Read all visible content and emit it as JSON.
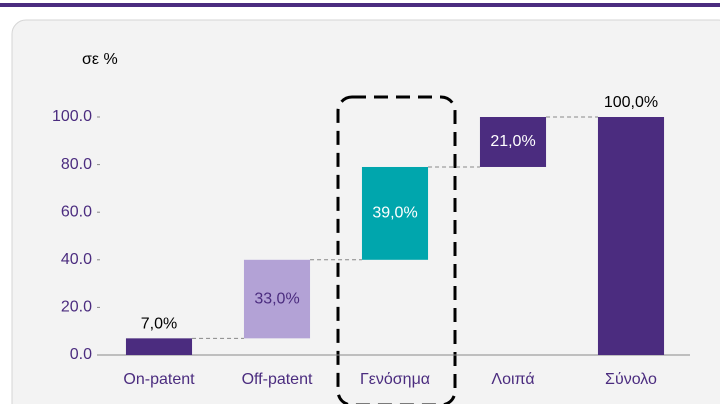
{
  "chart_data": {
    "type": "waterfall",
    "y_label": "σε %",
    "categories": [
      "On-patent",
      "Off-patent",
      "Γενόσημα",
      "Λοιπά",
      "Σύνολο"
    ],
    "values": [
      7,
      33,
      39,
      21,
      100
    ],
    "value_labels": [
      "7,0%",
      "33,0%",
      "39,0%",
      "21,0%",
      "100,0%"
    ],
    "measure": [
      "relative",
      "relative",
      "relative",
      "relative",
      "total"
    ],
    "colors": [
      "#4b2c7f",
      "#b3a2d6",
      "#00a6ad",
      "#4b2c7f",
      "#4b2c7f"
    ],
    "ylim": [
      0,
      100
    ],
    "yticks": [
      {
        "value": 0,
        "label": "0.0"
      },
      {
        "value": 20,
        "label": "20.0"
      },
      {
        "value": 40,
        "label": "40.0"
      },
      {
        "value": 60,
        "label": "60.0"
      },
      {
        "value": 80,
        "label": "80.0"
      },
      {
        "value": 100,
        "label": "100.0"
      }
    ],
    "connectors": true
  }
}
